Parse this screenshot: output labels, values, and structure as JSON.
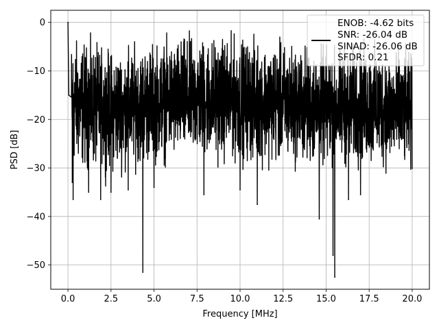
{
  "chart_data": {
    "type": "line",
    "title": "",
    "xlabel": "Frequency [MHz]",
    "ylabel": "PSD [dB]",
    "xlim": [
      -1.0,
      21.0
    ],
    "ylim": [
      -55.0,
      2.5
    ],
    "xticks": [
      0.0,
      2.5,
      5.0,
      7.5,
      10.0,
      12.5,
      15.0,
      17.5,
      20.0
    ],
    "xtick_labels": [
      "0.0",
      "2.5",
      "5.0",
      "7.5",
      "10.0",
      "12.5",
      "15.0",
      "17.5",
      "20.0"
    ],
    "yticks": [
      0,
      -10,
      -20,
      -30,
      -40,
      -50
    ],
    "ytick_labels": [
      "0",
      "−10",
      "−20",
      "−30",
      "−40",
      "−50"
    ],
    "grid": true,
    "legend": {
      "placement": "top-right",
      "entries": [
        "ENOB: -4.62 bits",
        "SNR: -26.04 dB",
        "SINAD: -26.06 dB",
        "SFDR: 0.21"
      ]
    },
    "series": [
      {
        "color": "#000000",
        "noise_band_upper": [
          [
            0.2,
            -4.0
          ],
          [
            2.5,
            -6.5
          ],
          [
            5.0,
            -5.0
          ],
          [
            7.5,
            -3.5
          ],
          [
            10.0,
            -4.0
          ],
          [
            12.5,
            -5.0
          ],
          [
            15.0,
            -6.0
          ],
          [
            17.5,
            -5.5
          ],
          [
            20.0,
            -7.0
          ]
        ],
        "noise_band_lower": [
          [
            0.2,
            -29.0
          ],
          [
            2.5,
            -30.0
          ],
          [
            5.0,
            -28.0
          ],
          [
            7.5,
            -27.5
          ],
          [
            10.0,
            -28.0
          ],
          [
            12.5,
            -28.5
          ],
          [
            15.0,
            -29.0
          ],
          [
            17.5,
            -29.0
          ],
          [
            20.0,
            -30.0
          ]
        ],
        "highlighted_points": [
          {
            "x": 0.0,
            "y": 0.0
          },
          {
            "x": 0.05,
            "y": -15.0
          },
          {
            "x": 0.25,
            "y": -33.0
          },
          {
            "x": 0.3,
            "y": -36.5
          },
          {
            "x": 1.2,
            "y": -35.0
          },
          {
            "x": 1.9,
            "y": -36.5
          },
          {
            "x": 2.5,
            "y": -35.0
          },
          {
            "x": 3.5,
            "y": -34.5
          },
          {
            "x": 4.35,
            "y": -51.5
          },
          {
            "x": 5.0,
            "y": -34.0
          },
          {
            "x": 7.9,
            "y": -35.5
          },
          {
            "x": 10.0,
            "y": -34.5
          },
          {
            "x": 11.0,
            "y": -37.5
          },
          {
            "x": 14.6,
            "y": -40.5
          },
          {
            "x": 15.4,
            "y": -48.0
          },
          {
            "x": 15.5,
            "y": -52.5
          },
          {
            "x": 16.3,
            "y": -36.5
          },
          {
            "x": 17.0,
            "y": -35.5
          }
        ]
      }
    ]
  }
}
